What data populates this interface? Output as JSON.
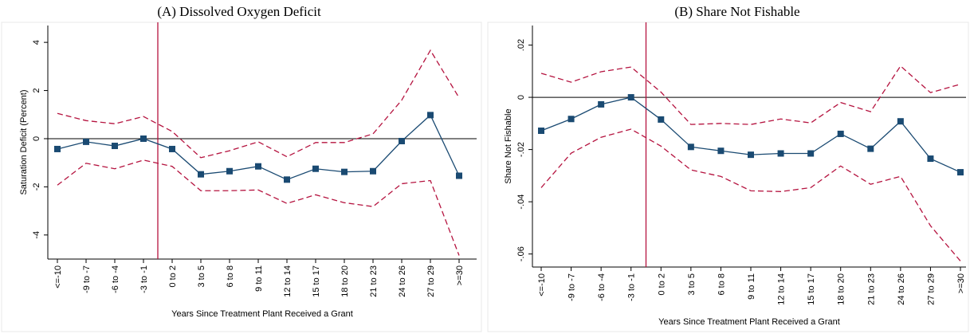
{
  "chart_data": [
    {
      "type": "line",
      "title": "(A) Dissolved Oxygen Deficit",
      "y_label": "Saturation Deficit (Percent)",
      "x_label": "Years Since Treatment Plant Received a Grant",
      "categories": [
        "<=-10",
        "-9 to -7",
        "-6 to -4",
        "-3 to -1",
        "0 to 2",
        "3 to 5",
        "6 to 8",
        "9 to 11",
        "12 to 14",
        "15 to 17",
        "18 to 20",
        "21 to 23",
        "24 to 26",
        "27 to 29",
        ">=30"
      ],
      "series": [
        {
          "color": "#1a4a72",
          "marker": "square",
          "dashed": false,
          "values": [
            -0.43,
            -0.13,
            -0.3,
            0,
            -0.43,
            -1.48,
            -1.35,
            -1.15,
            -1.7,
            -1.25,
            -1.38,
            -1.35,
            -0.1,
            0.98,
            -1.54
          ]
        },
        {
          "color": "#b5133f",
          "marker": null,
          "dashed": true,
          "values": [
            1.05,
            0.75,
            0.62,
            0.92,
            0.3,
            -0.79,
            -0.5,
            -0.13,
            -0.75,
            -0.16,
            -0.16,
            0.2,
            1.6,
            3.67,
            1.7
          ]
        },
        {
          "color": "#b5133f",
          "marker": null,
          "dashed": true,
          "values": [
            -1.93,
            -1.02,
            -1.25,
            -0.89,
            -1.15,
            -2.16,
            -2.16,
            -2.13,
            -2.69,
            -2.33,
            -2.66,
            -2.82,
            -1.87,
            -1.74,
            -4.85
          ]
        }
      ],
      "ylim": [
        -5,
        4.7
      ],
      "yticks": [
        -4,
        -2,
        0,
        2,
        4
      ]
    },
    {
      "type": "line",
      "title": "(B) Share Not Fishable",
      "y_label": "Share Not Fishable",
      "x_label": "Years Since Treatment Plant Received a Grant",
      "categories": [
        "<=-10",
        "-9 to -7",
        "-6 to -4",
        "-3 to -1",
        "0 to 2",
        "3 to 5",
        "6 to 8",
        "9 to 11",
        "12 to 14",
        "15 to 17",
        "18 to 20",
        "21 to 23",
        "24 to 26",
        "27 to 29",
        ">=30"
      ],
      "series": [
        {
          "color": "#1a4a72",
          "marker": "square",
          "dashed": false,
          "values": [
            -0.0128,
            -0.0083,
            -0.0027,
            0,
            -0.0085,
            -0.019,
            -0.0205,
            -0.022,
            -0.0215,
            -0.0215,
            -0.014,
            -0.0197,
            -0.0092,
            -0.0235,
            -0.0287
          ]
        },
        {
          "color": "#b5133f",
          "marker": null,
          "dashed": true,
          "values": [
            0.0092,
            0.0058,
            0.0098,
            0.0116,
            0.002,
            -0.0104,
            -0.01,
            -0.0104,
            -0.0083,
            -0.0098,
            -0.002,
            -0.0055,
            0.012,
            0.0018,
            0.005
          ]
        },
        {
          "color": "#b5133f",
          "marker": null,
          "dashed": true,
          "values": [
            -0.0346,
            -0.0214,
            -0.0153,
            -0.0122,
            -0.0187,
            -0.0278,
            -0.0303,
            -0.0358,
            -0.0361,
            -0.0346,
            -0.0263,
            -0.0333,
            -0.0303,
            -0.0492,
            -0.0627
          ]
        }
      ],
      "ylim": [
        -0.065,
        0.0275
      ],
      "yticks": [
        {
          "value": -0.06,
          "label": "-.06"
        },
        {
          "value": -0.04,
          "label": "-.04"
        },
        {
          "value": -0.02,
          "label": "-.02"
        },
        0,
        {
          "value": 0.02,
          "label": ".02"
        }
      ]
    }
  ]
}
